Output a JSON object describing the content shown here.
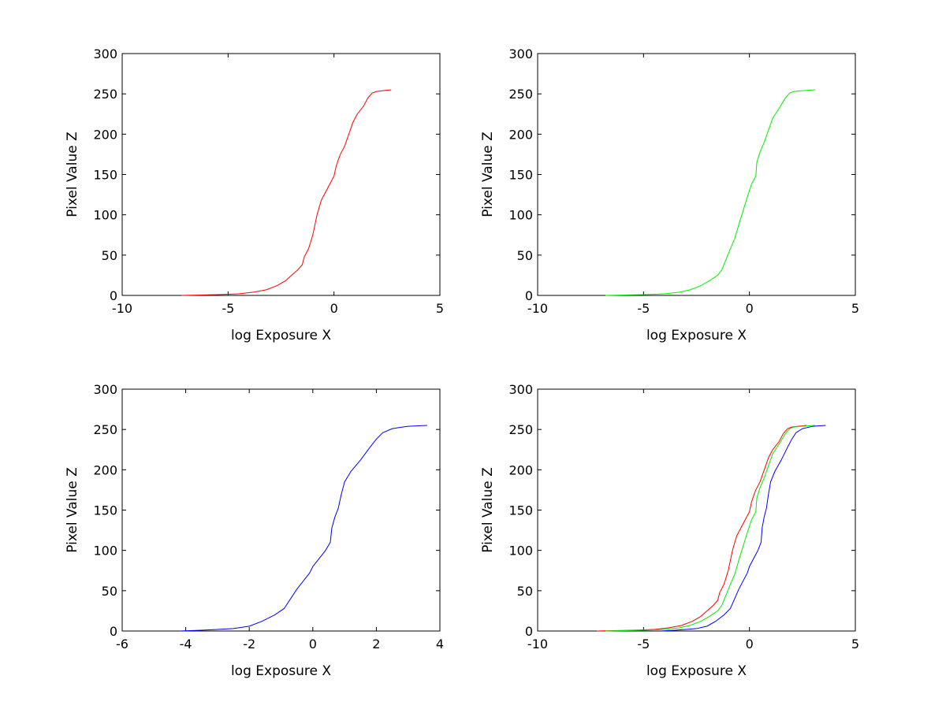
{
  "chart_data": [
    {
      "type": "line",
      "xlabel": "log Exposure X",
      "ylabel": "Pixel Value Z",
      "xlim": [
        -10,
        5
      ],
      "ylim": [
        0,
        300
      ],
      "xticks": [
        "-10",
        "-5",
        "0",
        "5"
      ],
      "yticks": [
        "0",
        "50",
        "100",
        "150",
        "200",
        "250",
        "300"
      ],
      "grid": false,
      "series": [
        {
          "color": "#ff0000",
          "x": [
            -7.2,
            -5.5,
            -4.5,
            -3.8,
            -3.2,
            -2.7,
            -2.3,
            -2.0,
            -1.7,
            -1.5,
            -1.4,
            -1.2,
            -1.0,
            -0.8,
            -0.6,
            -0.4,
            -0.2,
            0.0,
            0.1,
            0.2,
            0.3,
            0.5,
            0.7,
            0.9,
            1.1,
            1.4,
            1.6,
            1.8,
            2.0,
            2.3,
            2.7
          ],
          "y": [
            0,
            1,
            2,
            4,
            7,
            12,
            18,
            25,
            32,
            38,
            48,
            58,
            75,
            100,
            118,
            128,
            138,
            148,
            160,
            168,
            175,
            185,
            200,
            215,
            225,
            235,
            245,
            251,
            253,
            254,
            255
          ]
        }
      ]
    },
    {
      "type": "line",
      "xlabel": "log Exposure X",
      "ylabel": "Pixel Value Z",
      "xlim": [
        -10,
        5
      ],
      "ylim": [
        0,
        300
      ],
      "xticks": [
        "-10",
        "-5",
        "0",
        "5"
      ],
      "yticks": [
        "0",
        "50",
        "100",
        "150",
        "200",
        "250",
        "300"
      ],
      "grid": false,
      "series": [
        {
          "color": "#00ee00",
          "x": [
            -6.8,
            -5.0,
            -4.0,
            -3.3,
            -2.8,
            -2.3,
            -1.9,
            -1.5,
            -1.3,
            -1.1,
            -0.9,
            -0.7,
            -0.5,
            -0.3,
            -0.1,
            0.1,
            0.3,
            0.35,
            0.5,
            0.7,
            0.9,
            1.1,
            1.4,
            1.7,
            1.9,
            2.1,
            2.5,
            3.1
          ],
          "y": [
            0,
            1,
            2,
            4,
            7,
            12,
            18,
            25,
            32,
            45,
            58,
            70,
            88,
            105,
            122,
            138,
            148,
            165,
            178,
            190,
            205,
            220,
            232,
            245,
            251,
            253,
            254,
            255
          ]
        }
      ]
    },
    {
      "type": "line",
      "xlabel": "log Exposure X",
      "ylabel": "Pixel Value Z",
      "xlim": [
        -6,
        4
      ],
      "ylim": [
        0,
        300
      ],
      "xticks": [
        "-6",
        "-4",
        "-2",
        "0",
        "2",
        "4"
      ],
      "yticks": [
        "0",
        "50",
        "100",
        "150",
        "200",
        "250",
        "300"
      ],
      "grid": false,
      "series": [
        {
          "color": "#0000ff",
          "x": [
            -4.2,
            -3.5,
            -3.0,
            -2.5,
            -2.0,
            -1.6,
            -1.2,
            -0.9,
            -0.7,
            -0.5,
            -0.3,
            -0.1,
            0.0,
            0.2,
            0.4,
            0.55,
            0.6,
            0.7,
            0.8,
            0.9,
            1.0,
            1.2,
            1.5,
            1.8,
            2.0,
            2.2,
            2.5,
            3.0,
            3.6
          ],
          "y": [
            0,
            1,
            2,
            3,
            6,
            12,
            20,
            28,
            40,
            52,
            62,
            72,
            80,
            90,
            100,
            110,
            128,
            142,
            152,
            170,
            185,
            198,
            212,
            228,
            238,
            246,
            251,
            254,
            255
          ]
        }
      ]
    },
    {
      "type": "line",
      "xlabel": "log Exposure X",
      "ylabel": "Pixel Value Z",
      "xlim": [
        -10,
        5
      ],
      "ylim": [
        0,
        300
      ],
      "xticks": [
        "-10",
        "-5",
        "0",
        "5"
      ],
      "yticks": [
        "0",
        "50",
        "100",
        "150",
        "200",
        "250",
        "300"
      ],
      "grid": false,
      "series": [
        {
          "color": "#ff0000",
          "x": [
            -7.2,
            -5.5,
            -4.5,
            -3.8,
            -3.2,
            -2.7,
            -2.3,
            -2.0,
            -1.7,
            -1.5,
            -1.4,
            -1.2,
            -1.0,
            -0.8,
            -0.6,
            -0.4,
            -0.2,
            0.0,
            0.1,
            0.2,
            0.3,
            0.5,
            0.7,
            0.9,
            1.1,
            1.4,
            1.6,
            1.8,
            2.0,
            2.3,
            2.7
          ],
          "y": [
            0,
            1,
            2,
            4,
            7,
            12,
            18,
            25,
            32,
            38,
            48,
            58,
            75,
            100,
            118,
            128,
            138,
            148,
            160,
            168,
            175,
            185,
            200,
            215,
            225,
            235,
            245,
            251,
            253,
            254,
            255
          ]
        },
        {
          "color": "#00ee00",
          "x": [
            -6.8,
            -5.0,
            -4.0,
            -3.3,
            -2.8,
            -2.3,
            -1.9,
            -1.5,
            -1.3,
            -1.1,
            -0.9,
            -0.7,
            -0.5,
            -0.3,
            -0.1,
            0.1,
            0.3,
            0.35,
            0.5,
            0.7,
            0.9,
            1.1,
            1.4,
            1.7,
            1.9,
            2.1,
            2.5,
            3.1
          ],
          "y": [
            0,
            1,
            2,
            4,
            7,
            12,
            18,
            25,
            32,
            45,
            58,
            70,
            88,
            105,
            122,
            138,
            148,
            165,
            178,
            190,
            205,
            220,
            232,
            245,
            251,
            253,
            254,
            255
          ]
        },
        {
          "color": "#0000ff",
          "x": [
            -4.2,
            -3.5,
            -3.0,
            -2.5,
            -2.0,
            -1.6,
            -1.2,
            -0.9,
            -0.7,
            -0.5,
            -0.3,
            -0.1,
            0.0,
            0.2,
            0.4,
            0.55,
            0.6,
            0.7,
            0.8,
            0.9,
            1.0,
            1.2,
            1.5,
            1.8,
            2.0,
            2.2,
            2.5,
            3.0,
            3.6
          ],
          "y": [
            0,
            1,
            2,
            3,
            6,
            12,
            20,
            28,
            40,
            52,
            62,
            72,
            80,
            90,
            100,
            110,
            128,
            142,
            152,
            170,
            185,
            198,
            212,
            228,
            238,
            246,
            251,
            254,
            255
          ]
        }
      ]
    }
  ]
}
